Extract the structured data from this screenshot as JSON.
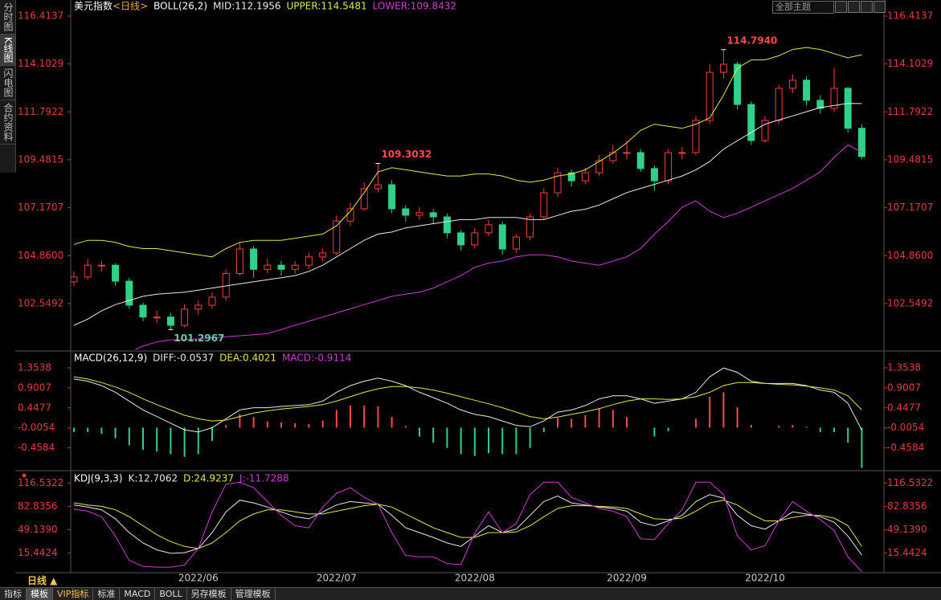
{
  "sidebar": [
    "分时图",
    "K线图",
    "闪电图",
    "合约资料"
  ],
  "theme_button": "全部主题",
  "toolbar": {
    "period": "日线 ▲",
    "tabs": [
      "指标",
      "模板",
      "VIP指标",
      "标准",
      "MACD",
      "BOLL",
      "另存模板",
      "管理模板"
    ]
  },
  "chart_data": [
    {
      "type": "candlestick",
      "title": "美元指数",
      "period": "<日线>",
      "indicator": "BOLL(26,2)",
      "categories": [
        null,
        null,
        null,
        null,
        null,
        null,
        null,
        null,
        null,
        "2022/06",
        null,
        null,
        null,
        null,
        null,
        null,
        null,
        null,
        null,
        "2022/07",
        null,
        null,
        null,
        null,
        null,
        null,
        null,
        null,
        null,
        "2022/08",
        null,
        null,
        null,
        null,
        null,
        null,
        null,
        null,
        null,
        null,
        "2022/09",
        null,
        null,
        null,
        null,
        null,
        null,
        null,
        null,
        null,
        "2022/10",
        null,
        null,
        null,
        null,
        null,
        null,
        null
      ],
      "candles": [
        [
          103.6,
          104.1,
          103.4,
          103.83
        ],
        [
          103.83,
          104.7,
          103.7,
          104.4
        ],
        [
          104.4,
          104.6,
          104.1,
          104.4
        ],
        [
          104.4,
          104.5,
          103.4,
          103.63
        ],
        [
          103.63,
          103.8,
          102.3,
          102.47
        ],
        [
          102.47,
          102.6,
          101.7,
          101.9
        ],
        [
          101.9,
          102.2,
          101.6,
          101.9
        ],
        [
          101.9,
          102.1,
          101.2967,
          101.5
        ],
        [
          101.5,
          102.5,
          101.4,
          102.28
        ],
        [
          102.28,
          102.7,
          102.0,
          102.47
        ],
        [
          102.47,
          103.1,
          102.3,
          102.86
        ],
        [
          102.86,
          104.2,
          102.7,
          104.0
        ],
        [
          104.0,
          105.5,
          103.9,
          105.18
        ],
        [
          105.18,
          105.3,
          103.8,
          104.2
        ],
        [
          104.2,
          104.7,
          104.0,
          104.4
        ],
        [
          104.4,
          104.6,
          103.9,
          104.2
        ],
        [
          104.2,
          104.6,
          104.0,
          104.4
        ],
        [
          104.4,
          105.0,
          104.2,
          104.8
        ],
        [
          104.8,
          105.2,
          104.6,
          104.99
        ],
        [
          104.99,
          106.8,
          104.9,
          106.53
        ],
        [
          106.53,
          107.4,
          106.3,
          107.12
        ],
        [
          107.12,
          108.4,
          107.0,
          108.09
        ],
        [
          108.09,
          109.3032,
          107.9,
          108.28
        ],
        [
          108.28,
          108.5,
          106.9,
          107.12
        ],
        [
          107.12,
          107.3,
          106.5,
          106.81
        ],
        [
          106.81,
          107.2,
          106.6,
          106.93
        ],
        [
          106.93,
          107.1,
          106.4,
          106.73
        ],
        [
          106.73,
          106.9,
          105.7,
          105.96
        ],
        [
          105.96,
          106.1,
          105.1,
          105.38
        ],
        [
          105.38,
          106.2,
          105.2,
          105.96
        ],
        [
          105.96,
          106.6,
          105.8,
          106.35
        ],
        [
          106.35,
          106.5,
          104.9,
          105.18
        ],
        [
          105.18,
          105.9,
          105.0,
          105.76
        ],
        [
          105.76,
          106.9,
          105.6,
          106.73
        ],
        [
          106.73,
          108.1,
          106.6,
          107.89
        ],
        [
          107.89,
          109.1,
          107.7,
          108.86
        ],
        [
          108.86,
          109.0,
          108.2,
          108.47
        ],
        [
          108.47,
          109.1,
          108.3,
          108.86
        ],
        [
          108.86,
          109.7,
          108.7,
          109.44
        ],
        [
          109.44,
          110.2,
          109.3,
          109.83
        ],
        [
          109.83,
          110.4,
          109.5,
          109.83
        ],
        [
          109.83,
          110.0,
          108.9,
          109.06
        ],
        [
          109.06,
          109.2,
          108.0,
          108.47
        ],
        [
          108.47,
          110.0,
          108.3,
          109.83
        ],
        [
          109.83,
          110.1,
          109.5,
          109.83
        ],
        [
          109.83,
          111.6,
          109.7,
          111.38
        ],
        [
          111.38,
          114.1,
          111.2,
          113.7
        ],
        [
          113.7,
          114.794,
          113.4,
          114.09
        ],
        [
          114.09,
          114.2,
          111.9,
          112.15
        ],
        [
          112.15,
          112.3,
          110.2,
          110.41
        ],
        [
          110.41,
          111.6,
          110.3,
          111.38
        ],
        [
          111.38,
          113.1,
          111.2,
          112.93
        ],
        [
          112.93,
          113.6,
          112.7,
          113.32
        ],
        [
          113.32,
          113.5,
          112.1,
          112.35
        ],
        [
          112.35,
          112.6,
          111.7,
          111.96
        ],
        [
          111.96,
          113.9,
          111.8,
          112.93
        ],
        [
          112.93,
          113.0,
          110.8,
          111.0
        ],
        [
          111.0,
          111.2,
          109.5,
          109.64
        ]
      ],
      "up_color": "#ff3b3b",
      "down_color": "#2fd08a",
      "extreme_labels": [
        null,
        null,
        null,
        null,
        null,
        null,
        null,
        "101.2967",
        null,
        null,
        null,
        null,
        null,
        null,
        null,
        null,
        null,
        null,
        null,
        null,
        null,
        null,
        "109.3032",
        null,
        null,
        null,
        null,
        null,
        null,
        null,
        null,
        null,
        null,
        null,
        null,
        null,
        null,
        null,
        null,
        null,
        null,
        null,
        null,
        null,
        null,
        null,
        null,
        "114.7940",
        null,
        null,
        null,
        null,
        null,
        null,
        null,
        null,
        null,
        null
      ],
      "series": [
        {
          "name": "MID:112.1956",
          "color": "#e8e8e8",
          "values": [
            101.5,
            101.8,
            102.2,
            102.5,
            102.7,
            102.9,
            103.0,
            103.05,
            103.1,
            103.2,
            103.3,
            103.4,
            103.5,
            103.6,
            103.7,
            103.8,
            103.9,
            104.1,
            104.4,
            104.8,
            105.2,
            105.6,
            105.9,
            106.0,
            106.2,
            106.3,
            106.4,
            106.5,
            106.6,
            106.6,
            106.7,
            106.7,
            106.7,
            106.6,
            106.6,
            106.8,
            107.0,
            107.1,
            107.3,
            107.6,
            107.9,
            108.1,
            108.3,
            108.5,
            108.7,
            109.0,
            109.4,
            110.0,
            110.4,
            110.8,
            111.2,
            111.4,
            111.6,
            111.8,
            112.0,
            112.1,
            112.2,
            112.1956
          ]
        },
        {
          "name": "UPPER:114.5481",
          "color": "#e6e64a",
          "values": [
            105.4,
            105.6,
            105.6,
            105.5,
            105.3,
            105.2,
            105.2,
            105.1,
            105.0,
            104.9,
            104.8,
            105.2,
            105.5,
            105.6,
            105.6,
            105.6,
            105.7,
            105.8,
            105.9,
            106.3,
            107.0,
            107.9,
            108.9,
            109.1,
            109.0,
            108.9,
            108.8,
            108.7,
            108.7,
            108.8,
            108.8,
            108.7,
            108.5,
            108.4,
            108.5,
            108.7,
            108.8,
            109.0,
            109.4,
            109.8,
            110.3,
            110.9,
            111.2,
            111.1,
            111.0,
            111.2,
            111.5,
            112.6,
            113.9,
            114.3,
            114.3,
            114.5,
            114.8,
            114.9,
            114.8,
            114.6,
            114.4,
            114.5481
          ]
        },
        {
          "name": "LOWER:109.8432",
          "color": "#d03cd0",
          "values": [
            null,
            null,
            null,
            null,
            100.2,
            100.5,
            100.7,
            100.8,
            100.8,
            100.85,
            100.9,
            100.95,
            101.0,
            101.05,
            101.1,
            101.3,
            101.5,
            101.7,
            101.9,
            102.1,
            102.3,
            102.5,
            102.7,
            102.9,
            103.0,
            103.1,
            103.3,
            103.6,
            103.9,
            104.3,
            104.5,
            104.6,
            104.8,
            104.9,
            104.9,
            104.8,
            104.6,
            104.5,
            104.4,
            104.6,
            104.8,
            105.2,
            105.9,
            106.5,
            107.2,
            107.5,
            107.0,
            106.7,
            106.9,
            107.2,
            107.5,
            107.8,
            108.1,
            108.5,
            108.9,
            109.6,
            110.2,
            109.8432
          ]
        }
      ],
      "ylim": [
        100.34,
        116.8
      ],
      "yticks": [
        116.4137,
        114.1029,
        111.7922,
        109.4815,
        107.1707,
        {
          "value": 104.86,
          "label": "104.8600"
        },
        102.5492
      ]
    },
    {
      "type": "macd",
      "indicator": "MACD(26,12,9)",
      "series": [
        {
          "name": "DIFF:-0.0537",
          "color": "#e8e8e8",
          "values": [
            1.1,
            1.05,
            0.95,
            0.8,
            0.6,
            0.4,
            0.25,
            0.1,
            -0.05,
            -0.1,
            0.0,
            0.2,
            0.4,
            0.45,
            0.45,
            0.48,
            0.5,
            0.52,
            0.6,
            0.8,
            0.95,
            1.05,
            1.12,
            1.05,
            0.95,
            0.8,
            0.68,
            0.55,
            0.4,
            0.3,
            0.25,
            0.15,
            0.05,
            0.02,
            0.15,
            0.35,
            0.4,
            0.5,
            0.65,
            0.72,
            0.72,
            0.65,
            0.55,
            0.6,
            0.65,
            0.8,
            1.15,
            1.35,
            1.25,
            1.05,
            1.0,
            1.0,
            1.0,
            0.95,
            0.85,
            0.8,
            0.55,
            -0.0537
          ]
        },
        {
          "name": "DEA:0.4021",
          "color": "#e6e64a",
          "values": [
            1.15,
            1.1,
            1.02,
            0.92,
            0.8,
            0.65,
            0.52,
            0.4,
            0.28,
            0.2,
            0.15,
            0.17,
            0.25,
            0.33,
            0.38,
            0.42,
            0.45,
            0.48,
            0.52,
            0.6,
            0.7,
            0.8,
            0.88,
            0.93,
            0.93,
            0.9,
            0.85,
            0.78,
            0.7,
            0.62,
            0.54,
            0.45,
            0.35,
            0.25,
            0.2,
            0.24,
            0.3,
            0.36,
            0.43,
            0.52,
            0.6,
            0.65,
            0.65,
            0.64,
            0.65,
            0.7,
            0.8,
            0.95,
            1.02,
            1.02,
            1.0,
            0.98,
            0.97,
            0.94,
            0.9,
            0.85,
            0.72,
            0.4021
          ]
        }
      ],
      "histogram": {
        "name": "MACD:-0.9114",
        "color": "#d03cd0",
        "up_color": "#ff4a4a",
        "down_color": "#2fd08a",
        "values": [
          -0.1,
          -0.1,
          -0.14,
          -0.24,
          -0.4,
          -0.5,
          -0.54,
          -0.6,
          -0.66,
          -0.6,
          -0.3,
          0.06,
          0.3,
          0.24,
          0.14,
          0.12,
          0.1,
          0.08,
          0.16,
          0.4,
          0.5,
          0.5,
          0.48,
          0.24,
          0.04,
          -0.2,
          -0.34,
          -0.46,
          -0.6,
          -0.64,
          -0.58,
          -0.6,
          -0.6,
          -0.46,
          -0.1,
          0.22,
          0.2,
          0.28,
          0.44,
          0.4,
          0.24,
          0.0,
          -0.2,
          -0.08,
          0.0,
          0.2,
          0.7,
          0.8,
          0.46,
          0.06,
          0.0,
          0.04,
          0.06,
          0.02,
          -0.1,
          -0.1,
          -0.34,
          -0.9114
        ]
      },
      "ylim": [
        -0.92,
        1.68
      ],
      "yticks": [
        1.3538,
        0.9007,
        0.4477,
        -0.0054,
        -0.4584
      ]
    },
    {
      "type": "kdj",
      "indicator": "KDJ(9,3,3)",
      "series": [
        {
          "name": "K:12.7062",
          "color": "#e8e8e8",
          "values": [
            85,
            82,
            78,
            65,
            45,
            30,
            20,
            15,
            16,
            22,
            45,
            75,
            92,
            88,
            82,
            75,
            68,
            65,
            75,
            85,
            90,
            88,
            86,
            70,
            52,
            45,
            38,
            30,
            25,
            40,
            55,
            45,
            50,
            70,
            90,
            98,
            88,
            85,
            82,
            80,
            76,
            60,
            55,
            62,
            70,
            90,
            100,
            95,
            70,
            55,
            50,
            62,
            75,
            72,
            68,
            60,
            40,
            12.7062
          ]
        },
        {
          "name": "D:24.9237",
          "color": "#e6e64a",
          "values": [
            88,
            85,
            83,
            78,
            68,
            55,
            42,
            32,
            25,
            22,
            30,
            45,
            62,
            72,
            78,
            78,
            75,
            72,
            72,
            76,
            80,
            84,
            86,
            82,
            72,
            62,
            52,
            45,
            38,
            38,
            45,
            45,
            46,
            55,
            68,
            80,
            84,
            84,
            83,
            82,
            80,
            72,
            65,
            64,
            66,
            76,
            88,
            92,
            85,
            72,
            62,
            62,
            67,
            70,
            70,
            66,
            55,
            24.9237
          ]
        },
        {
          "name": "J:-11.7288",
          "color": "#d03cd0",
          "values": [
            79,
            76,
            68,
            40,
            5,
            -4,
            -5,
            -5,
            -2,
            22,
            75,
            115,
            118,
            110,
            90,
            70,
            55,
            52,
            82,
            102,
            110,
            96,
            86,
            45,
            12,
            10,
            10,
            0,
            -1,
            44,
            75,
            45,
            58,
            100,
            118,
            118,
            96,
            88,
            80,
            76,
            68,
            36,
            35,
            58,
            78,
            118,
            118,
            100,
            40,
            20,
            26,
            62,
            90,
            76,
            64,
            48,
            10,
            -11.7288
          ]
        }
      ],
      "ylim": [
        -13,
        130
      ],
      "yticks": [
        116.5322,
        82.8356,
        {
          "value": 49.139,
          "label": "49.1390"
        },
        15.4424
      ]
    }
  ]
}
